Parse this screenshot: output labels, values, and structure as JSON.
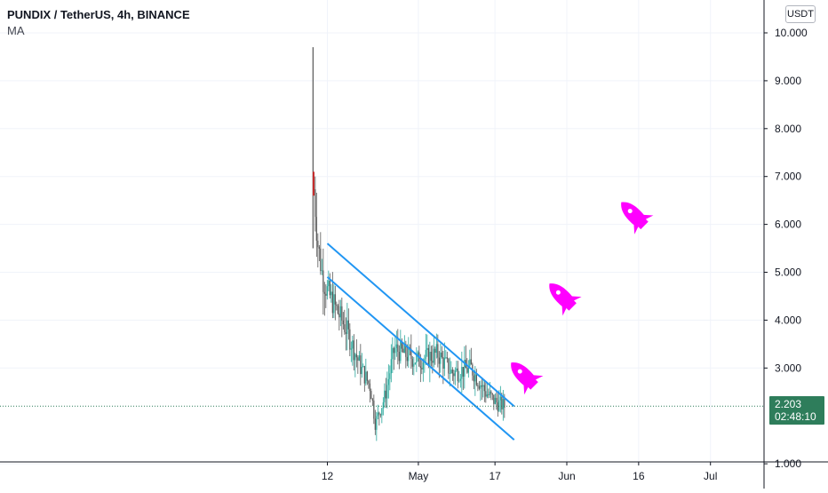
{
  "header": {
    "symbol_title": "PUNDIX / TetherUS, 4h, BINANCE",
    "indicator": "MA",
    "currency_button": "USDT"
  },
  "price_axis": {
    "labels": [
      "10.000",
      "9.000",
      "8.000",
      "7.000",
      "6.000",
      "5.000",
      "4.000",
      "3.000",
      "1.000"
    ]
  },
  "time_axis": {
    "labels": [
      "12",
      "May",
      "17",
      "Jun",
      "16",
      "Jul"
    ]
  },
  "last_price": {
    "price": "2.203",
    "countdown": "02:48:10",
    "color": "#2e7d5b"
  },
  "colors": {
    "trendline": "#2196f3",
    "rocket": "#ff00ff",
    "grid": "#f0f3fa",
    "candle_up": "#26a69a",
    "candle_down": "#555555",
    "last_price_line": "#2e7d5b"
  },
  "chart_data": {
    "type": "candlestick",
    "symbol": "PUNDIX / TetherUS",
    "interval": "4h",
    "exchange": "BINANCE",
    "ylim": [
      1.0,
      10.0
    ],
    "y_ticks": [
      10,
      9,
      8,
      7,
      6,
      5,
      4,
      3,
      1
    ],
    "x_ticks": [
      "12",
      "May",
      "17",
      "Jun",
      "16",
      "Jul"
    ],
    "price_path": [
      {
        "date": "2021-04-09",
        "price": 9.7
      },
      {
        "date": "2021-04-09",
        "price": 7.0
      },
      {
        "date": "2021-04-10",
        "price": 5.6
      },
      {
        "date": "2021-04-11",
        "price": 4.9
      },
      {
        "date": "2021-04-12",
        "price": 4.6
      },
      {
        "date": "2021-04-14",
        "price": 4.2
      },
      {
        "date": "2021-04-16",
        "price": 3.8
      },
      {
        "date": "2021-04-19",
        "price": 3.0
      },
      {
        "date": "2021-04-21",
        "price": 2.6
      },
      {
        "date": "2021-04-22",
        "price": 1.85
      },
      {
        "date": "2021-04-24",
        "price": 2.4
      },
      {
        "date": "2021-04-26",
        "price": 3.4
      },
      {
        "date": "2021-05-01",
        "price": 3.15
      },
      {
        "date": "2021-05-05",
        "price": 3.3
      },
      {
        "date": "2021-05-08",
        "price": 2.9
      },
      {
        "date": "2021-05-12",
        "price": 3.0
      },
      {
        "date": "2021-05-15",
        "price": 2.5
      },
      {
        "date": "2021-05-17",
        "price": 2.3
      },
      {
        "date": "2021-05-19",
        "price": 2.2
      }
    ],
    "last_price": 2.203,
    "trendlines": [
      {
        "from": {
          "date": "2021-04-12",
          "price": 5.6
        },
        "to": {
          "date": "2021-05-21",
          "price": 2.2
        }
      },
      {
        "from": {
          "date": "2021-04-12",
          "price": 4.9
        },
        "to": {
          "date": "2021-05-21",
          "price": 1.5
        }
      }
    ],
    "annotations": [
      {
        "type": "rocket",
        "date": "2021-05-23",
        "price": 2.85
      },
      {
        "type": "rocket",
        "date": "2021-05-31",
        "price": 4.5
      },
      {
        "type": "rocket",
        "date": "2021-06-15",
        "price": 6.2
      }
    ]
  }
}
